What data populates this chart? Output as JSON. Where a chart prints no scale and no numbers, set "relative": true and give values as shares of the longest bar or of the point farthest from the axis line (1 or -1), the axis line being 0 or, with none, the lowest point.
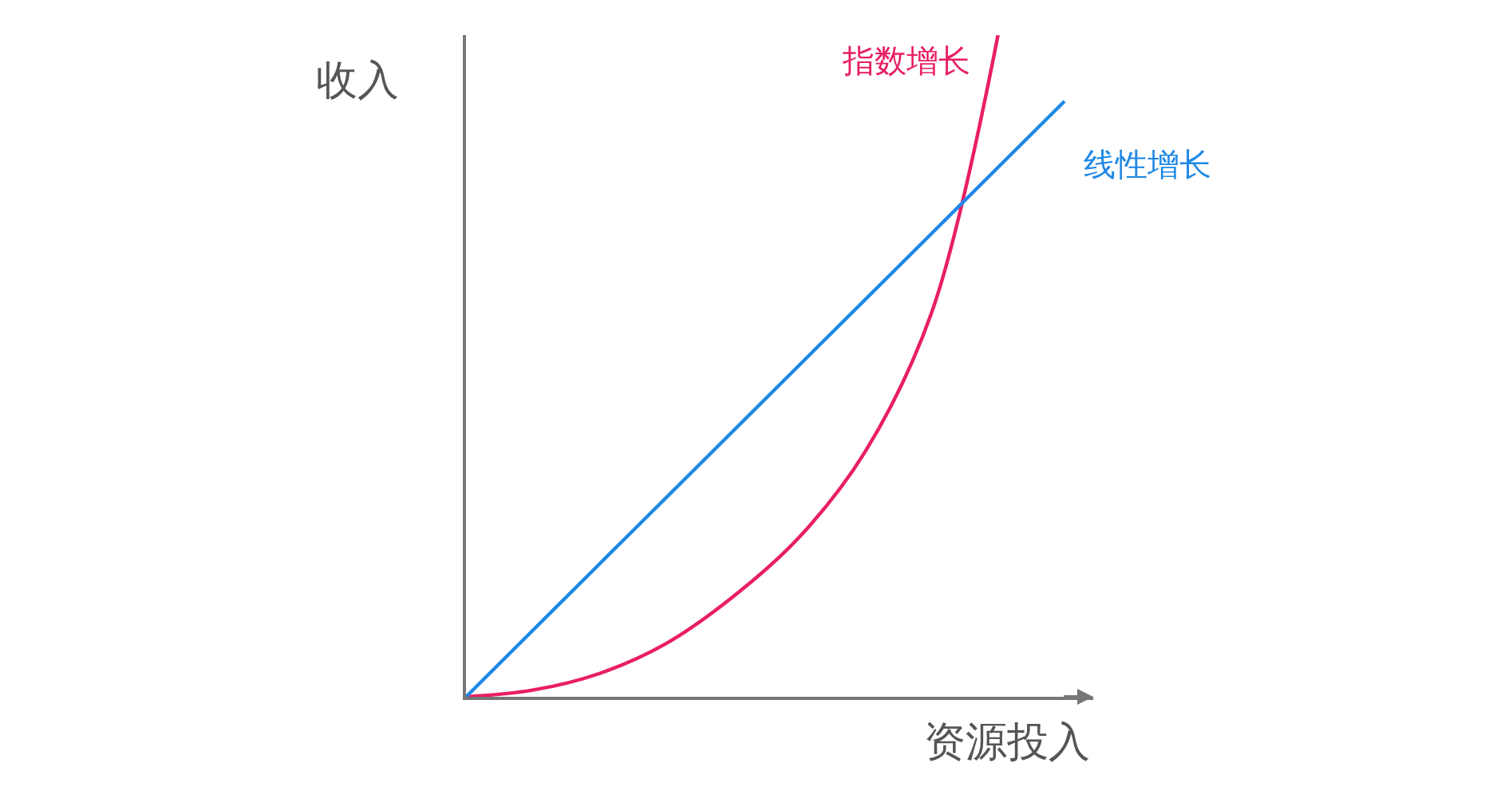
{
  "chart_data": {
    "type": "line",
    "relative": true,
    "xlabel": "资源投入",
    "ylabel": "收入",
    "marker": "none",
    "line_style": "solid",
    "categories": [
      null,
      null,
      null,
      null,
      null,
      null,
      null,
      null,
      null,
      null
    ],
    "series": [
      {
        "name": "指数增长",
        "color": "#e91e63",
        "values": [
          0,
          0.01,
          0.035,
          0.08,
          0.15,
          0.24,
          0.37,
          0.58,
          1,
          null
        ]
      },
      {
        "name": "线性增长",
        "color": "#1e88e5",
        "values": [
          0,
          0.1,
          0.2,
          0.3,
          0.4,
          0.5,
          0.6,
          0.7,
          0.8,
          0.9
        ]
      }
    ]
  }
}
